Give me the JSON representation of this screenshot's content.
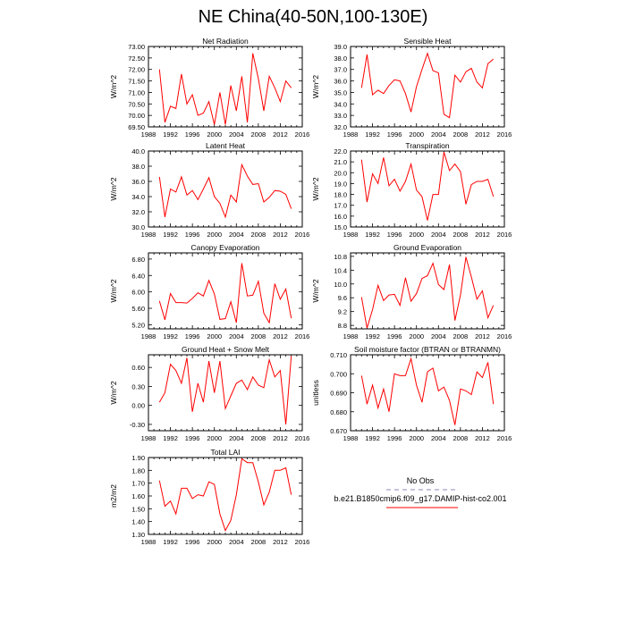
{
  "title": "NE China(40-50N,100-130E)",
  "x_ticks": [
    1988,
    1992,
    1996,
    2000,
    2004,
    2008,
    2012,
    2016
  ],
  "years": [
    1990,
    1991,
    1992,
    1993,
    1994,
    1995,
    1996,
    1997,
    1998,
    1999,
    2000,
    2001,
    2002,
    2003,
    2004,
    2005,
    2006,
    2007,
    2008,
    2009,
    2010,
    2011,
    2012,
    2013,
    2014
  ],
  "line_color": "#ff0000",
  "obs_color": "#a0a0c8",
  "chart_data": [
    {
      "type": "line",
      "title": "Net Radiation",
      "ylabel": "W/m^2",
      "xlim": [
        1988,
        2016
      ],
      "ylim": [
        69.5,
        73.0
      ],
      "y_ticks": [
        "69.50",
        "70.00",
        "70.50",
        "71.00",
        "71.50",
        "72.00",
        "72.50",
        "73.00"
      ],
      "values": [
        72.0,
        69.7,
        70.4,
        70.3,
        71.8,
        70.5,
        70.9,
        70.0,
        70.1,
        70.6,
        69.6,
        71.0,
        69.6,
        71.3,
        70.2,
        71.7,
        69.7,
        72.7,
        71.6,
        70.2,
        71.7,
        71.2,
        70.6,
        71.5,
        71.2
      ]
    },
    {
      "type": "line",
      "title": "Sensible Heat",
      "ylabel": "W/m^2",
      "xlim": [
        1988,
        2016
      ],
      "ylim": [
        32.0,
        39.0
      ],
      "y_ticks": [
        "32.0",
        "33.0",
        "34.0",
        "35.0",
        "36.0",
        "37.0",
        "38.0",
        "39.0"
      ],
      "values": [
        35.4,
        38.3,
        34.8,
        35.2,
        34.9,
        35.6,
        36.1,
        36.0,
        34.9,
        33.3,
        35.5,
        37.0,
        38.4,
        36.9,
        36.7,
        33.1,
        32.8,
        36.5,
        35.9,
        36.8,
        37.1,
        35.9,
        35.4,
        37.5,
        37.9
      ]
    },
    {
      "type": "line",
      "title": "Latent Heat",
      "ylabel": "W/m^2",
      "xlim": [
        1988,
        2016
      ],
      "ylim": [
        30.0,
        40.0
      ],
      "y_ticks": [
        "30.0",
        "32.0",
        "34.0",
        "36.0",
        "38.0",
        "40.0"
      ],
      "values": [
        36.6,
        31.3,
        35.0,
        34.6,
        36.6,
        34.2,
        34.8,
        33.6,
        35.0,
        36.5,
        34.0,
        33.1,
        31.3,
        34.2,
        33.3,
        38.2,
        36.7,
        35.6,
        35.7,
        33.3,
        33.9,
        34.8,
        34.7,
        34.3,
        32.4
      ]
    },
    {
      "type": "line",
      "title": "Transpiration",
      "ylabel": "W/m^2",
      "xlim": [
        1988,
        2016
      ],
      "ylim": [
        15.0,
        22.0
      ],
      "y_ticks": [
        "15.0",
        "16.0",
        "17.0",
        "18.0",
        "19.0",
        "20.0",
        "21.0",
        "22.0"
      ],
      "values": [
        21.2,
        17.3,
        19.9,
        19.0,
        21.4,
        18.8,
        19.4,
        18.3,
        19.2,
        20.8,
        18.4,
        17.8,
        15.6,
        18.0,
        18.0,
        21.9,
        20.2,
        20.8,
        20.1,
        17.1,
        18.9,
        19.2,
        19.2,
        19.4,
        17.8
      ]
    },
    {
      "type": "line",
      "title": "Canopy Evaporation",
      "ylabel": "W/m^2",
      "xlim": [
        1988,
        2016
      ],
      "ylim": [
        5.1,
        6.95
      ],
      "y_ticks": [
        "5.20",
        "5.60",
        "6.00",
        "6.40",
        "6.80"
      ],
      "values": [
        5.78,
        5.32,
        5.96,
        5.74,
        5.74,
        5.73,
        5.84,
        5.98,
        5.9,
        6.28,
        5.95,
        5.33,
        5.35,
        5.76,
        5.25,
        6.7,
        5.9,
        5.92,
        6.26,
        5.48,
        5.25,
        6.2,
        5.82,
        6.07,
        5.36
      ]
    },
    {
      "type": "line",
      "title": "Ground Evaporation",
      "ylabel": "W/m^2",
      "xlim": [
        1988,
        2016
      ],
      "ylim": [
        8.7,
        10.9
      ],
      "y_ticks": [
        "8.8",
        "9.2",
        "9.6",
        "10.0",
        "10.4",
        "10.8"
      ],
      "values": [
        9.62,
        8.72,
        9.26,
        9.96,
        9.52,
        9.68,
        9.7,
        9.38,
        10.18,
        9.5,
        9.72,
        10.16,
        10.24,
        10.6,
        9.98,
        9.84,
        10.56,
        8.94,
        9.68,
        10.78,
        10.2,
        9.56,
        9.8,
        9.02,
        9.38
      ]
    },
    {
      "type": "line",
      "title": "Ground Heat + Snow Melt",
      "ylabel": "W/m^2",
      "xlim": [
        1988,
        2016
      ],
      "ylim": [
        -0.4,
        0.8
      ],
      "y_ticks": [
        "-0.30",
        "0.00",
        "0.30",
        "0.60"
      ],
      "values": [
        0.05,
        0.2,
        0.65,
        0.55,
        0.35,
        0.75,
        -0.1,
        0.35,
        0.05,
        0.7,
        0.2,
        0.7,
        -0.05,
        0.15,
        0.35,
        0.4,
        0.25,
        0.45,
        0.32,
        0.28,
        0.72,
        0.45,
        0.55,
        -0.3,
        0.78
      ]
    },
    {
      "type": "line",
      "title": "Soil moisture factor (BTRAN or BTRANMN)",
      "ylabel": "unitless",
      "xlim": [
        1988,
        2016
      ],
      "ylim": [
        0.67,
        0.71
      ],
      "y_ticks": [
        "0.670",
        "0.680",
        "0.690",
        "0.700",
        "0.710"
      ],
      "values": [
        0.699,
        0.684,
        0.694,
        0.682,
        0.692,
        0.68,
        0.7,
        0.699,
        0.699,
        0.708,
        0.694,
        0.685,
        0.701,
        0.703,
        0.691,
        0.693,
        0.686,
        0.673,
        0.692,
        0.691,
        0.689,
        0.701,
        0.698,
        0.706,
        0.684
      ]
    },
    {
      "type": "line",
      "title": "Total LAI",
      "ylabel": "m2/m2",
      "xlim": [
        1988,
        2016
      ],
      "ylim": [
        1.3,
        1.9
      ],
      "y_ticks": [
        "1.30",
        "1.40",
        "1.50",
        "1.60",
        "1.70",
        "1.80",
        "1.90"
      ],
      "values": [
        1.72,
        1.52,
        1.56,
        1.46,
        1.66,
        1.66,
        1.58,
        1.61,
        1.6,
        1.71,
        1.69,
        1.46,
        1.33,
        1.41,
        1.61,
        1.89,
        1.86,
        1.86,
        1.71,
        1.53,
        1.63,
        1.8,
        1.8,
        1.82,
        1.61
      ]
    }
  ],
  "legend": {
    "obs_label": "No Obs",
    "model_label": "b.e21.B1850cmip6.f09_g17.DAMIP-hist-co2.001"
  }
}
